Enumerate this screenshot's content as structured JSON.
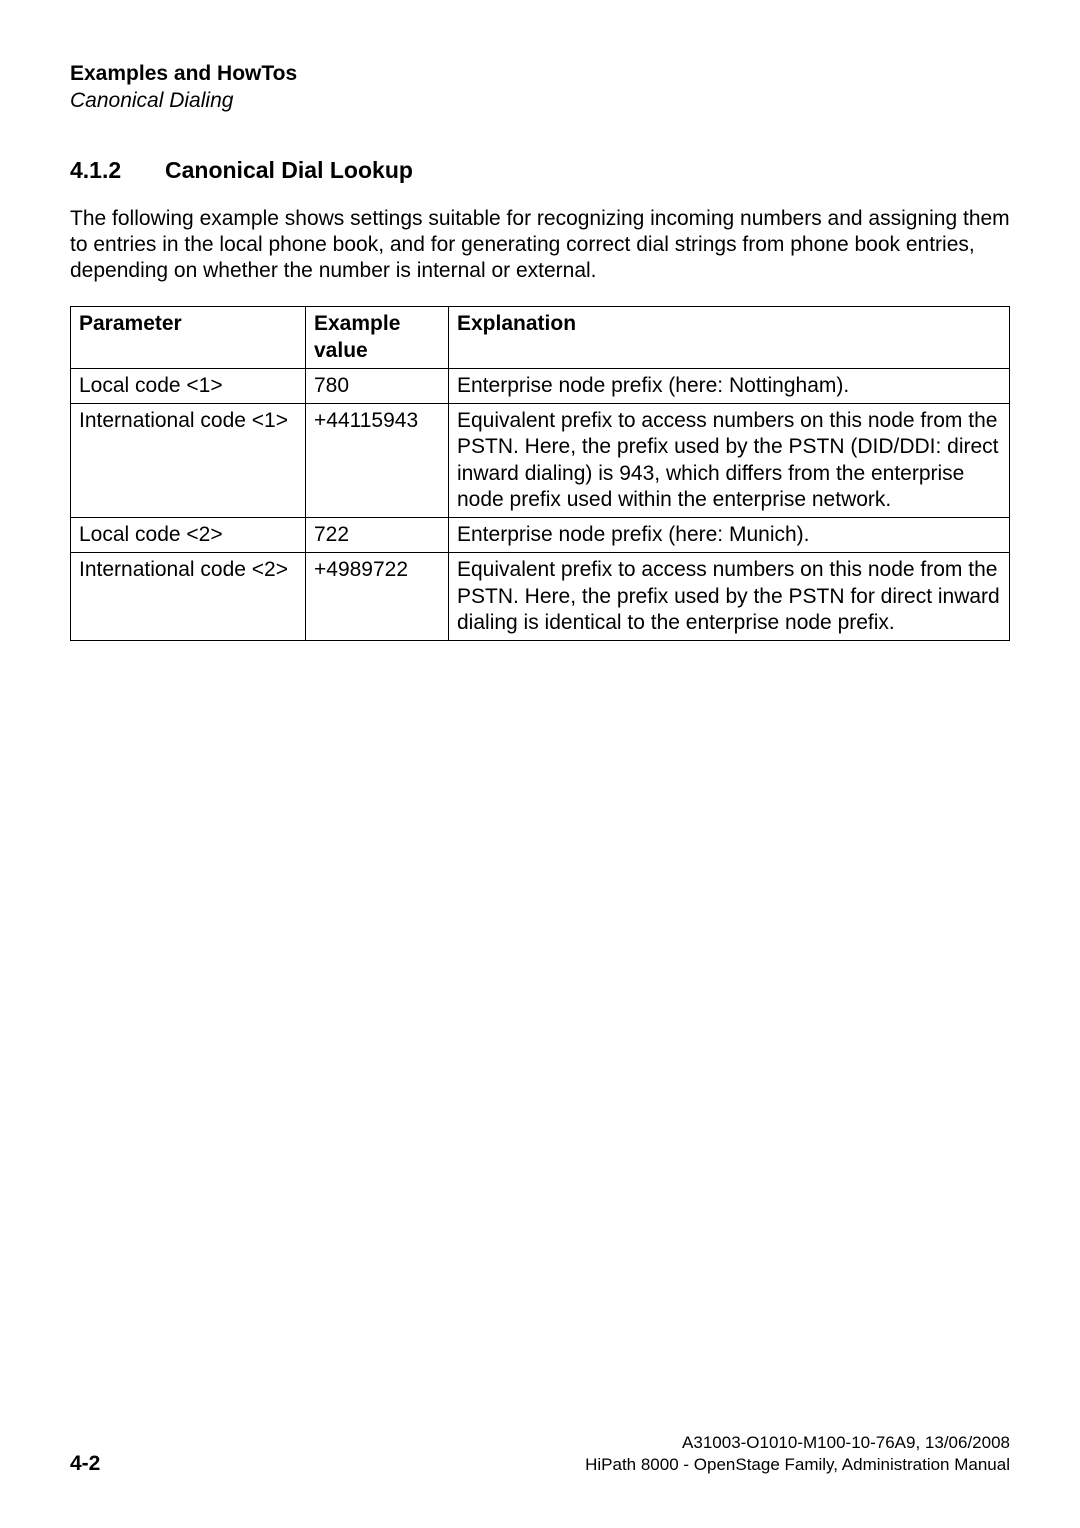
{
  "header": {
    "title": "Examples and HowTos",
    "subtitle": "Canonical Dialing"
  },
  "section": {
    "number": "4.1.2",
    "title": "Canonical Dial Lookup"
  },
  "intro_paragraph": "The following example shows settings suitable for recognizing incoming numbers and assigning them to entries in the local phone book, and for generating correct dial strings from phone book entries, depending on whether the number is internal or external.",
  "table": {
    "columns": [
      "Parameter",
      "Example value",
      "Explanation"
    ],
    "rows": [
      {
        "parameter": "Local code <1>",
        "example_value": "780",
        "explanation": "Enterprise node prefix (here: Nottingham)."
      },
      {
        "parameter": "International code <1>",
        "example_value": "+44115943",
        "explanation": "Equivalent prefix to access numbers on this node from the PSTN. Here, the prefix used by the PSTN (DID/DDI: direct inward dialing) is 943, which differs from the enterprise node prefix used within the enterprise network."
      },
      {
        "parameter": "Local code <2>",
        "example_value": "722",
        "explanation": "Enterprise node prefix (here: Munich)."
      },
      {
        "parameter": "International code <2>",
        "example_value": "+4989722",
        "explanation": "Equivalent prefix to access numbers on this node from the PSTN. Here, the prefix used by the PSTN for direct inward dialing is identical to the enterprise node prefix."
      }
    ]
  },
  "footer": {
    "doc_id": "A31003-O1010-M100-10-76A9, 13/06/2008",
    "doc_title": "HiPath 8000 - OpenStage Family, Administration Manual",
    "page": "4-2"
  }
}
